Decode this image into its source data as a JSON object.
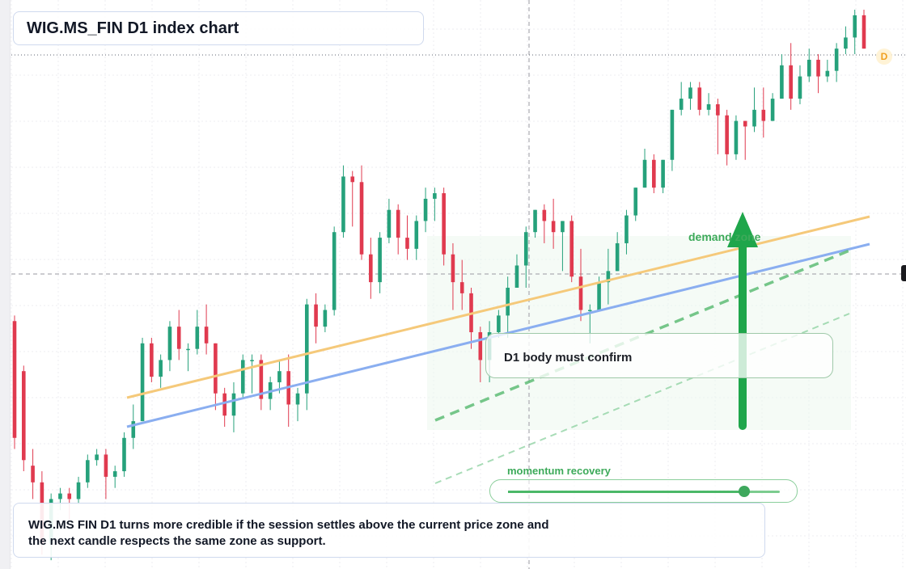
{
  "title": "WIG.MS_FIN D1 index chart",
  "chart_data": {
    "type": "candlestick",
    "symbol": "WIG.MS_FIN",
    "timeframe": "D1",
    "candles": [
      [
        0.44,
        0.23,
        0.45,
        0.21
      ],
      [
        0.35,
        0.19,
        0.36,
        0.17
      ],
      [
        0.18,
        0.15,
        0.21,
        0.12
      ],
      [
        0.15,
        0.04,
        0.17,
        0.02
      ],
      [
        0.04,
        0.12,
        0.13,
        0.01
      ],
      [
        0.12,
        0.13,
        0.14,
        0.1
      ],
      [
        0.13,
        0.12,
        0.14,
        0.08
      ],
      [
        0.12,
        0.15,
        0.16,
        0.11
      ],
      [
        0.15,
        0.19,
        0.2,
        0.14
      ],
      [
        0.19,
        0.2,
        0.21,
        0.18
      ],
      [
        0.2,
        0.16,
        0.21,
        0.12
      ],
      [
        0.16,
        0.17,
        0.18,
        0.14
      ],
      [
        0.17,
        0.23,
        0.24,
        0.16
      ],
      [
        0.23,
        0.26,
        0.29,
        0.21
      ],
      [
        0.26,
        0.4,
        0.41,
        0.26
      ],
      [
        0.4,
        0.34,
        0.41,
        0.33
      ],
      [
        0.34,
        0.37,
        0.38,
        0.32
      ],
      [
        0.37,
        0.43,
        0.44,
        0.35
      ],
      [
        0.43,
        0.39,
        0.46,
        0.37
      ],
      [
        0.39,
        0.39,
        0.4,
        0.35
      ],
      [
        0.39,
        0.43,
        0.46,
        0.38
      ],
      [
        0.43,
        0.4,
        0.47,
        0.38
      ],
      [
        0.4,
        0.31,
        0.4,
        0.28
      ],
      [
        0.31,
        0.27,
        0.32,
        0.25
      ],
      [
        0.27,
        0.31,
        0.33,
        0.24
      ],
      [
        0.31,
        0.37,
        0.38,
        0.3
      ],
      [
        0.37,
        0.37,
        0.38,
        0.31
      ],
      [
        0.37,
        0.3,
        0.38,
        0.28
      ],
      [
        0.3,
        0.33,
        0.34,
        0.28
      ],
      [
        0.33,
        0.35,
        0.37,
        0.31
      ],
      [
        0.35,
        0.29,
        0.38,
        0.25
      ],
      [
        0.29,
        0.31,
        0.32,
        0.26
      ],
      [
        0.31,
        0.47,
        0.48,
        0.28
      ],
      [
        0.47,
        0.43,
        0.49,
        0.4
      ],
      [
        0.43,
        0.46,
        0.47,
        0.42
      ],
      [
        0.46,
        0.6,
        0.61,
        0.45
      ],
      [
        0.6,
        0.7,
        0.72,
        0.59
      ],
      [
        0.7,
        0.69,
        0.71,
        0.61
      ],
      [
        0.69,
        0.56,
        0.72,
        0.55
      ],
      [
        0.56,
        0.51,
        0.59,
        0.48
      ],
      [
        0.51,
        0.59,
        0.6,
        0.49
      ],
      [
        0.59,
        0.64,
        0.66,
        0.58
      ],
      [
        0.64,
        0.59,
        0.65,
        0.56
      ],
      [
        0.59,
        0.57,
        0.63,
        0.55
      ],
      [
        0.57,
        0.62,
        0.63,
        0.55
      ],
      [
        0.62,
        0.66,
        0.68,
        0.6
      ],
      [
        0.66,
        0.67,
        0.68,
        0.62
      ],
      [
        0.67,
        0.56,
        0.68,
        0.54
      ],
      [
        0.56,
        0.51,
        0.58,
        0.46
      ],
      [
        0.51,
        0.49,
        0.55,
        0.46
      ],
      [
        0.49,
        0.42,
        0.5,
        0.39
      ],
      [
        0.42,
        0.37,
        0.43,
        0.33
      ],
      [
        0.37,
        0.42,
        0.44,
        0.33
      ],
      [
        0.42,
        0.45,
        0.46,
        0.41
      ],
      [
        0.45,
        0.5,
        0.52,
        0.41
      ],
      [
        0.5,
        0.54,
        0.56,
        0.5
      ],
      [
        0.54,
        0.6,
        0.61,
        0.5
      ],
      [
        0.6,
        0.64,
        0.64,
        0.59
      ],
      [
        0.64,
        0.62,
        0.65,
        0.58
      ],
      [
        0.62,
        0.6,
        0.66,
        0.57
      ],
      [
        0.6,
        0.62,
        0.62,
        0.53
      ],
      [
        0.62,
        0.52,
        0.63,
        0.51
      ],
      [
        0.52,
        0.46,
        0.57,
        0.44
      ],
      [
        0.46,
        0.46,
        0.47,
        0.4
      ],
      [
        0.46,
        0.51,
        0.52,
        0.46
      ],
      [
        0.51,
        0.53,
        0.57,
        0.47
      ],
      [
        0.53,
        0.58,
        0.6,
        0.53
      ],
      [
        0.58,
        0.63,
        0.64,
        0.56
      ],
      [
        0.63,
        0.68,
        0.68,
        0.62
      ],
      [
        0.68,
        0.73,
        0.75,
        0.68
      ],
      [
        0.73,
        0.68,
        0.74,
        0.67
      ],
      [
        0.68,
        0.73,
        0.73,
        0.67
      ],
      [
        0.73,
        0.82,
        0.82,
        0.71
      ],
      [
        0.82,
        0.84,
        0.87,
        0.81
      ],
      [
        0.84,
        0.86,
        0.87,
        0.82
      ],
      [
        0.86,
        0.82,
        0.87,
        0.81
      ],
      [
        0.82,
        0.83,
        0.85,
        0.81
      ],
      [
        0.83,
        0.81,
        0.84,
        0.74
      ],
      [
        0.81,
        0.74,
        0.82,
        0.72
      ],
      [
        0.74,
        0.8,
        0.81,
        0.73
      ],
      [
        0.8,
        0.79,
        0.8,
        0.73
      ],
      [
        0.79,
        0.82,
        0.86,
        0.78
      ],
      [
        0.82,
        0.8,
        0.86,
        0.77
      ],
      [
        0.8,
        0.84,
        0.85,
        0.8
      ],
      [
        0.84,
        0.9,
        0.92,
        0.84
      ],
      [
        0.9,
        0.84,
        0.94,
        0.82
      ],
      [
        0.84,
        0.88,
        0.9,
        0.83
      ],
      [
        0.88,
        0.91,
        0.93,
        0.87
      ],
      [
        0.91,
        0.88,
        0.92,
        0.85
      ],
      [
        0.88,
        0.89,
        0.91,
        0.87
      ],
      [
        0.89,
        0.93,
        0.94,
        0.87
      ],
      [
        0.93,
        0.95,
        0.97,
        0.92
      ],
      [
        0.95,
        0.99,
        1.0,
        0.92
      ],
      [
        0.99,
        0.93,
        1.0,
        0.93
      ]
    ],
    "support_lines": [
      "orange trend line",
      "blue trend line",
      "green dashed channel lines"
    ],
    "annotations": [
      "demand zone",
      "D1 body must confirm",
      "momentum recovery"
    ],
    "current_price_marker": "D",
    "grid": true,
    "colors": {
      "up": "#26a17b",
      "down": "#e03a4f",
      "orange_line": "#f5c97a",
      "blue_line": "#8aaef0",
      "accent_green": "#1fa64b",
      "zone_fill": "#edf8ef"
    }
  },
  "labels": {
    "demand": "demand zone",
    "confirm": "D1 body must confirm",
    "momentum": "momentum recovery",
    "momentum_value": 0.87,
    "badge": "D"
  },
  "note": {
    "line1": "WIG.MS FIN D1 turns more credible if the session settles above the current price zone and",
    "line2": "the next candle respects the same zone as support."
  }
}
